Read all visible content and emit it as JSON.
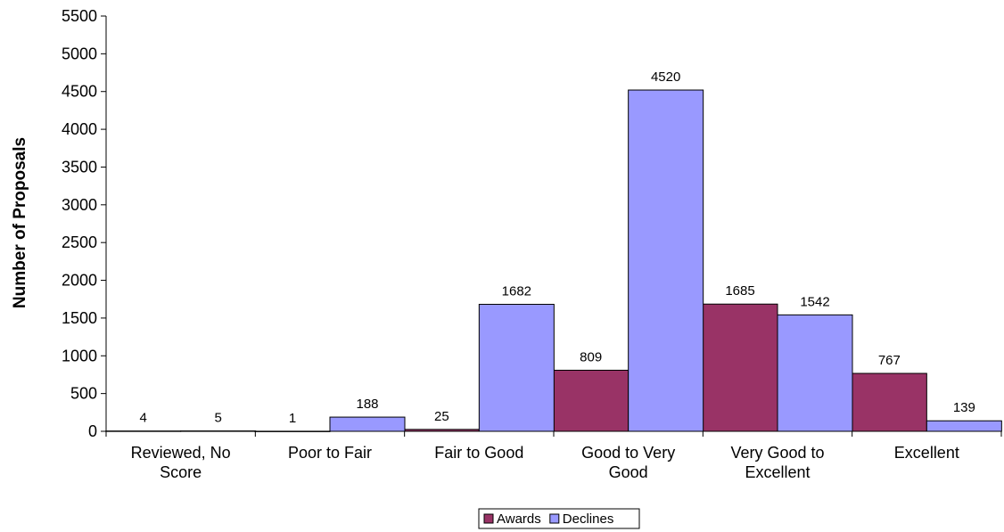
{
  "chart_data": {
    "type": "bar",
    "title": "",
    "xlabel": "",
    "ylabel": "Number of Proposals",
    "ylim": [
      0,
      5500
    ],
    "yticks": [
      0,
      500,
      1000,
      1500,
      2000,
      2500,
      3000,
      3500,
      4000,
      4500,
      5000,
      5500
    ],
    "categories": [
      [
        "Reviewed, No",
        "Score"
      ],
      [
        "Poor to Fair"
      ],
      [
        "Fair to Good"
      ],
      [
        "Good to Very",
        "Good"
      ],
      [
        "Very Good to",
        "Excellent"
      ],
      [
        "Excellent"
      ]
    ],
    "series": [
      {
        "name": "Awards",
        "color": "#993366",
        "values": [
          4,
          1,
          25,
          809,
          1685,
          767
        ]
      },
      {
        "name": "Declines",
        "color": "#9999ff",
        "values": [
          5,
          188,
          1682,
          4520,
          1542,
          139
        ]
      }
    ],
    "grid": false,
    "legend_position": "bottom"
  }
}
